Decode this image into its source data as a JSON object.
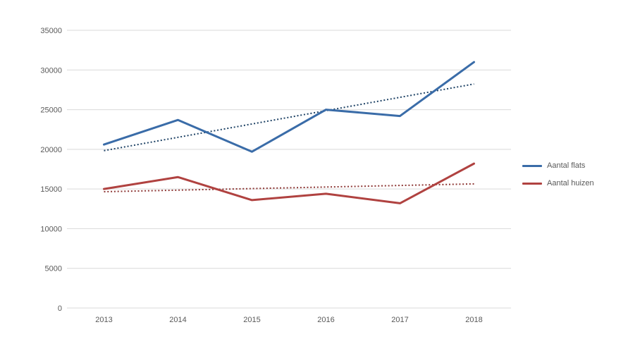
{
  "chart_data": {
    "type": "line",
    "title": "",
    "xlabel": "",
    "ylabel": "",
    "categories": [
      "2013",
      "2014",
      "2015",
      "2016",
      "2017",
      "2018"
    ],
    "series": [
      {
        "name": "Aantal flats",
        "color": "#3A6CA8",
        "values": [
          20600,
          23700,
          19700,
          25000,
          24200,
          31000
        ],
        "trendline": {
          "show": true,
          "color": "#1F4366",
          "style": "dotted"
        }
      },
      {
        "name": "Aantal huizen",
        "color": "#B04240",
        "values": [
          15000,
          16500,
          13600,
          14400,
          13200,
          18200
        ],
        "trendline": {
          "show": true,
          "color": "#8E3836",
          "style": "dotted"
        }
      }
    ],
    "ylim": [
      0,
      35000
    ],
    "ytick_interval": 5000,
    "yticks": [
      "0",
      "5000",
      "10000",
      "15000",
      "20000",
      "25000",
      "30000",
      "35000"
    ],
    "grid": true,
    "legend_position": "right",
    "colors": {
      "grid": "#D9D9D9",
      "text": "#595959",
      "background": "#FFFFFF"
    }
  }
}
